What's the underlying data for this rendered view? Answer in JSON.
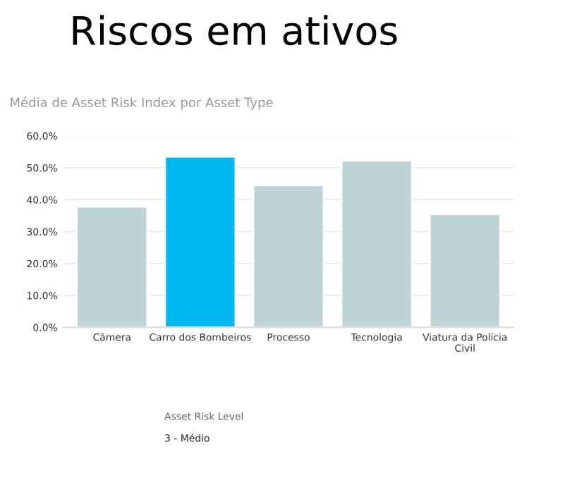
{
  "chart_data": {
    "type": "bar",
    "title": "Riscos em ativos",
    "subtitle": "Média de Asset Risk Index por Asset Type",
    "categories": [
      "Câmera",
      "Carro dos Bombeiros",
      "Processo",
      "Tecnologia",
      "Viatura da Polícia\nCivil"
    ],
    "values": [
      37.8,
      53.5,
      44.5,
      52.2,
      35.5
    ],
    "colors": [
      "#bdd3d6",
      "#00b8f0",
      "#bdd3d6",
      "#bdd3d6",
      "#bdd3d6"
    ],
    "ylim": [
      0,
      60
    ],
    "yticks": [
      {
        "value": 0,
        "label": "0.0%"
      },
      {
        "value": 10,
        "label": "10.0%"
      },
      {
        "value": 20,
        "label": "20.0%"
      },
      {
        "value": 30,
        "label": "30.0%"
      },
      {
        "value": 40,
        "label": "40.0%"
      },
      {
        "value": 50,
        "label": "50.0%"
      },
      {
        "value": 60,
        "label": "60.0%"
      }
    ],
    "grid": "y",
    "annotations": [
      "Asset Risk Level",
      "3 - Médio"
    ]
  }
}
